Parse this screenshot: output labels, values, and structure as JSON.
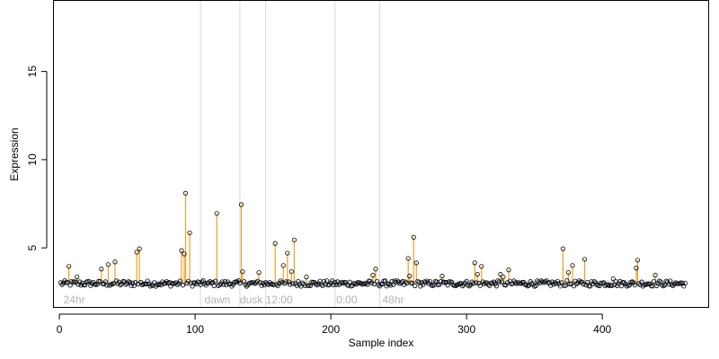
{
  "chart_data": {
    "type": "scatter",
    "title": "",
    "xlabel": "Sample index",
    "ylabel": "Expression",
    "xlim": [
      -4,
      478
    ],
    "ylim": [
      1.6,
      19.0
    ],
    "x_ticks": [
      0,
      100,
      200,
      300,
      400
    ],
    "y_ticks": [
      5,
      10,
      15
    ],
    "baseline": 3.0,
    "grid": false,
    "legend": "none",
    "colors": {
      "points": "#000000",
      "spikes": "#f0a020",
      "baseline_band": "#a8c0e0",
      "separators": "#d9d9d9",
      "segment_labels": "#b3b3b3"
    },
    "segment_boundaries": [
      104,
      133,
      152,
      203,
      236
    ],
    "segment_labels": [
      {
        "x": 3,
        "text": "24hr"
      },
      {
        "x": 107,
        "text": "dawn"
      },
      {
        "x": 133,
        "text": "dusk"
      },
      {
        "x": 152,
        "text": "12:00"
      },
      {
        "x": 204,
        "text": "0:00"
      },
      {
        "x": 238,
        "text": "48hr"
      }
    ],
    "n_points": 461,
    "series": [
      {
        "name": "",
        "peaks": [
          [
            7,
            3.95
          ],
          [
            13,
            3.35
          ],
          [
            31,
            3.8
          ],
          [
            36,
            4.05
          ],
          [
            41,
            4.2
          ],
          [
            57,
            4.75
          ],
          [
            59,
            4.95
          ],
          [
            90,
            4.85
          ],
          [
            92,
            4.65
          ],
          [
            93,
            8.1
          ],
          [
            96,
            5.85
          ],
          [
            116,
            6.95
          ],
          [
            134,
            7.45
          ],
          [
            135,
            3.65
          ],
          [
            147,
            3.6
          ],
          [
            159,
            5.25
          ],
          [
            165,
            4.0
          ],
          [
            168,
            4.7
          ],
          [
            171,
            3.65
          ],
          [
            173,
            5.45
          ],
          [
            182,
            3.35
          ],
          [
            231,
            3.45
          ],
          [
            233,
            3.8
          ],
          [
            257,
            4.4
          ],
          [
            258,
            3.4
          ],
          [
            261,
            5.6
          ],
          [
            263,
            4.15
          ],
          [
            282,
            3.4
          ],
          [
            306,
            4.15
          ],
          [
            308,
            3.5
          ],
          [
            311,
            3.95
          ],
          [
            325,
            3.5
          ],
          [
            327,
            3.35
          ],
          [
            331,
            3.75
          ],
          [
            371,
            4.95
          ],
          [
            375,
            3.6
          ],
          [
            378,
            4.0
          ],
          [
            387,
            4.35
          ],
          [
            408,
            3.25
          ],
          [
            425,
            3.85
          ],
          [
            426,
            4.3
          ],
          [
            439,
            3.45
          ]
        ]
      }
    ]
  }
}
